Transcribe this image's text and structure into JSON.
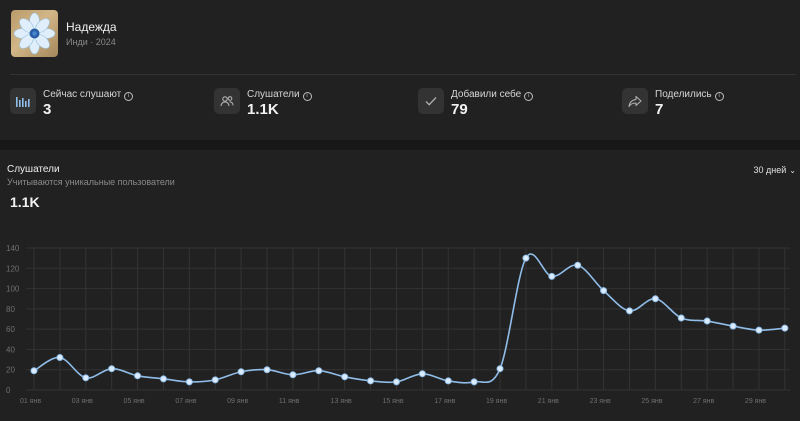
{
  "release": {
    "title": "Надежда",
    "subtitle": "Инди · 2024"
  },
  "stats": [
    {
      "label": "Сейчас слушают",
      "value": "3",
      "icon": "bars-icon"
    },
    {
      "label": "Слушатели",
      "value": "1.1K",
      "icon": "users-icon"
    },
    {
      "label": "Добавили себе",
      "value": "79",
      "icon": "check-icon"
    },
    {
      "label": "Поделились",
      "value": "7",
      "icon": "share-icon"
    }
  ],
  "colors": {
    "line": "#8fbde8",
    "point": "#dcecff",
    "grid": "#333333",
    "background": "#212121"
  },
  "chart": {
    "title": "Слушатели",
    "subtitle": "Учитываются уникальные пользователи",
    "total": "1.1K",
    "period": "30 дней"
  },
  "chart_data": {
    "type": "line",
    "title": "Слушатели",
    "xlabel": "",
    "ylabel": "",
    "ylim": [
      0,
      140
    ],
    "yticks": [
      0,
      20,
      40,
      60,
      80,
      100,
      120,
      140
    ],
    "x_tick_labels": [
      "01 янв",
      "03 янв",
      "05 янв",
      "07 янв",
      "09 янв",
      "11 янв",
      "13 янв",
      "15 янв",
      "17 янв",
      "19 янв",
      "21 янв",
      "23 янв",
      "25 янв",
      "27 янв",
      "29 янв"
    ],
    "series": [
      {
        "name": "Слушатели",
        "days": [
          1,
          2,
          3,
          4,
          5,
          6,
          7,
          8,
          9,
          10,
          11,
          12,
          13,
          14,
          15,
          16,
          17,
          18,
          19,
          20,
          21,
          22,
          23,
          24,
          25,
          26,
          27,
          28,
          29,
          30
        ],
        "values": [
          19,
          32,
          12,
          21,
          14,
          11,
          8,
          10,
          18,
          20,
          15,
          19,
          13,
          9,
          8,
          16,
          9,
          8,
          21,
          130,
          112,
          123,
          98,
          78,
          90,
          71,
          68,
          63,
          59,
          61
        ]
      }
    ]
  }
}
